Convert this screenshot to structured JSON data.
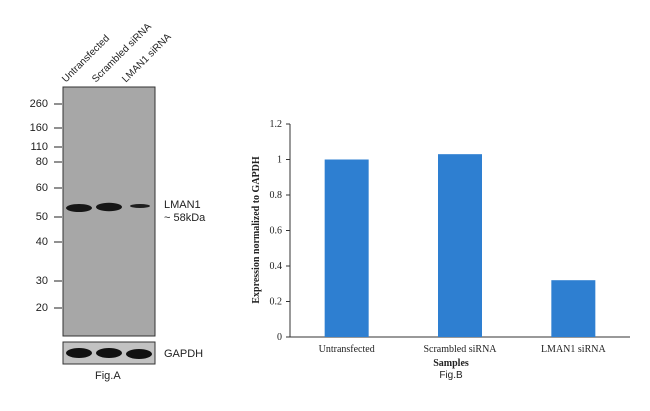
{
  "blot": {
    "lanes": [
      "Untransfected",
      "Scrambled siRNA",
      "LMAN1 siRNA"
    ],
    "mw_markers": [
      "260",
      "160",
      "110",
      "80",
      "60",
      "50",
      "40",
      "30",
      "20"
    ],
    "target_label": "LMAN1",
    "target_size": "~ 58kDa",
    "control_label": "GAPDH",
    "caption": "Fig.A"
  },
  "chart_data": {
    "type": "bar",
    "categories": [
      "Untransfected",
      "Scrambled siRNA",
      "LMAN1 siRNA"
    ],
    "values": [
      1.0,
      1.03,
      0.32
    ],
    "title": "",
    "xlabel": "Samples",
    "ylabel": "Expression normalized to GAPDH",
    "ylim": [
      0,
      1.2
    ],
    "yticks": [
      "0",
      "0.2",
      "0.4",
      "0.6",
      "0.8",
      "1",
      "1.2"
    ],
    "bar_color": "#2e7fd1",
    "caption": "Fig.B",
    "grid": false,
    "legend": "none"
  }
}
